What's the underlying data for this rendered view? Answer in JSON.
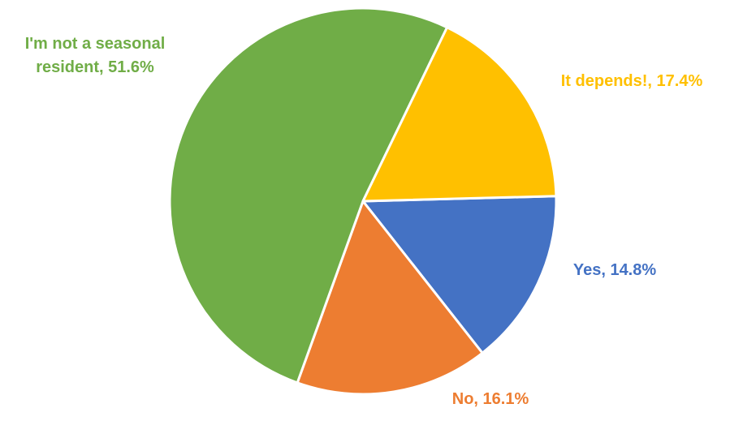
{
  "chart_data": {
    "type": "pie",
    "title": "",
    "slices": [
      {
        "label": "Yes",
        "value": 14.8,
        "data_label": "Yes, 14.8%",
        "color": "#4472C4"
      },
      {
        "label": "No",
        "value": 16.1,
        "data_label": "No, 16.1%",
        "color": "#ED7D31"
      },
      {
        "label": "I'm not a seasonal resident",
        "value": 51.6,
        "data_label": [
          "I'm not a seasonal",
          "resident, 51.6%"
        ],
        "color": "#70AD47"
      },
      {
        "label": "It depends!",
        "value": 17.4,
        "data_label": "It depends!, 17.4%",
        "color": "#FFC000"
      }
    ],
    "start_angle_deg": 88.5,
    "direction": "clockwise",
    "slice_border_color": "#ffffff",
    "legend": "none"
  }
}
